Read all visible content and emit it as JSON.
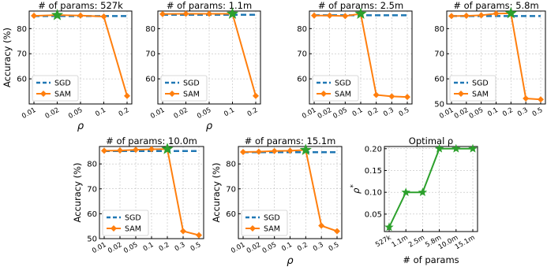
{
  "colors": {
    "sgd": "#1f77b4",
    "sam": "#ff7f0e",
    "star": "#2ca02c",
    "rho_line": "#2ca02c",
    "grid": "#b0b0b0"
  },
  "chart_data": [
    {
      "type": "line",
      "title": "# of params: 527k",
      "xlabel": "ρ",
      "ylabel": "Accuracy (%)",
      "categories": [
        "0.01",
        "0.02",
        "0.05",
        "0.1",
        "0.2"
      ],
      "ylim": [
        50,
        87
      ],
      "yticks": [
        60,
        70,
        80
      ],
      "grid": true,
      "legend": "lower-left",
      "series": [
        {
          "name": "SGD",
          "style": "dashed",
          "values": [
            85,
            85,
            85,
            85,
            85
          ]
        },
        {
          "name": "SAM",
          "style": "diamond",
          "values": [
            85.1,
            85.4,
            85.2,
            84.8,
            53.2
          ]
        }
      ],
      "best_index": 1
    },
    {
      "type": "line",
      "title": "# of params: 1.1m",
      "xlabel": "ρ",
      "ylabel": "",
      "categories": [
        "0.01",
        "0.02",
        "0.05",
        "0.1",
        "0.2"
      ],
      "ylim": [
        50,
        87
      ],
      "yticks": [
        60,
        70,
        80
      ],
      "grid": true,
      "legend": "lower-left",
      "series": [
        {
          "name": "SGD",
          "style": "dashed",
          "values": [
            85.5,
            85.5,
            85.5,
            85.5,
            85.5
          ]
        },
        {
          "name": "SAM",
          "style": "diamond",
          "values": [
            85.8,
            85.9,
            85.9,
            85.9,
            53.2
          ]
        }
      ],
      "best_index": 3
    },
    {
      "type": "line",
      "title": "# of params: 2.5m",
      "xlabel": "",
      "ylabel": "",
      "categories": [
        "0.01",
        "0.02",
        "0.05",
        "0.1",
        "0.2",
        "0.3",
        "0.5"
      ],
      "ylim": [
        50,
        87
      ],
      "yticks": [
        60,
        70,
        80
      ],
      "grid": true,
      "legend": "lower-left",
      "series": [
        {
          "name": "SGD",
          "style": "dashed",
          "values": [
            85.3,
            85.3,
            85.3,
            85.3,
            85.3,
            85.3,
            85.3
          ]
        },
        {
          "name": "SAM",
          "style": "diamond",
          "values": [
            85.2,
            85.2,
            85.0,
            85.9,
            53.6,
            53.0,
            52.8
          ]
        }
      ],
      "best_index": 3
    },
    {
      "type": "line",
      "title": "# of params: 5.8m",
      "xlabel": "",
      "ylabel": "",
      "categories": [
        "0.01",
        "0.02",
        "0.05",
        "0.1",
        "0.2",
        "0.3",
        "0.5"
      ],
      "ylim": [
        50,
        87
      ],
      "yticks": [
        50,
        60,
        70,
        80
      ],
      "grid": true,
      "legend": "lower-left",
      "series": [
        {
          "name": "SGD",
          "style": "dashed",
          "values": [
            85,
            85,
            85,
            85,
            85,
            85,
            85
          ]
        },
        {
          "name": "SAM",
          "style": "diamond",
          "values": [
            85.0,
            85.1,
            85.3,
            86.0,
            86.1,
            52.2,
            51.8
          ]
        }
      ],
      "best_index": 4
    },
    {
      "type": "line",
      "title": "# of params: 10.0m",
      "xlabel": "",
      "ylabel": "Accuracy (%)",
      "categories": [
        "0.01",
        "0.02",
        "0.05",
        "0.1",
        "0.2",
        "0.3",
        "0.5"
      ],
      "ylim": [
        50,
        87
      ],
      "yticks": [
        50,
        60,
        70,
        80
      ],
      "grid": true,
      "legend": "lower-left",
      "series": [
        {
          "name": "SGD",
          "style": "dashed",
          "values": [
            85.2,
            85.2,
            85.2,
            85.2,
            85.2,
            85.2,
            85.2
          ]
        },
        {
          "name": "SAM",
          "style": "diamond",
          "values": [
            85.3,
            85.4,
            85.7,
            85.9,
            86.0,
            53.0,
            51.4
          ]
        }
      ],
      "best_index": 4
    },
    {
      "type": "line",
      "title": "# of params: 15.1m",
      "xlabel": "ρ",
      "ylabel": "Accuracy (%)",
      "categories": [
        "0.01",
        "0.02",
        "0.05",
        "0.1",
        "0.2",
        "0.3",
        "0.5"
      ],
      "ylim": [
        50,
        87
      ],
      "yticks": [
        60,
        70,
        80
      ],
      "grid": true,
      "legend": "lower-left",
      "series": [
        {
          "name": "SGD",
          "style": "dashed",
          "values": [
            84.7,
            84.7,
            84.7,
            84.7,
            84.7,
            84.7,
            84.7
          ]
        },
        {
          "name": "SAM",
          "style": "diamond",
          "values": [
            84.8,
            84.9,
            85.2,
            85.3,
            85.6,
            55.2,
            53.0
          ]
        }
      ],
      "best_index": 4
    },
    {
      "type": "line",
      "title": "Optimal ρ",
      "xlabel": "# of params",
      "ylabel": "ρ*",
      "categories": [
        "527k",
        "1.1m",
        "2.5m",
        "5.8m",
        "10.0m",
        "15.1m"
      ],
      "ylim": [
        0.01,
        0.205
      ],
      "yticks": [
        0.05,
        0.1,
        0.15,
        0.2
      ],
      "ytick_labels": [
        "0.05",
        "0.10",
        "0.15",
        "0.20"
      ],
      "grid": true,
      "series": [
        {
          "name": "",
          "style": "star-line",
          "values": [
            0.02,
            0.1,
            0.1,
            0.2,
            0.2,
            0.2
          ]
        }
      ]
    }
  ]
}
